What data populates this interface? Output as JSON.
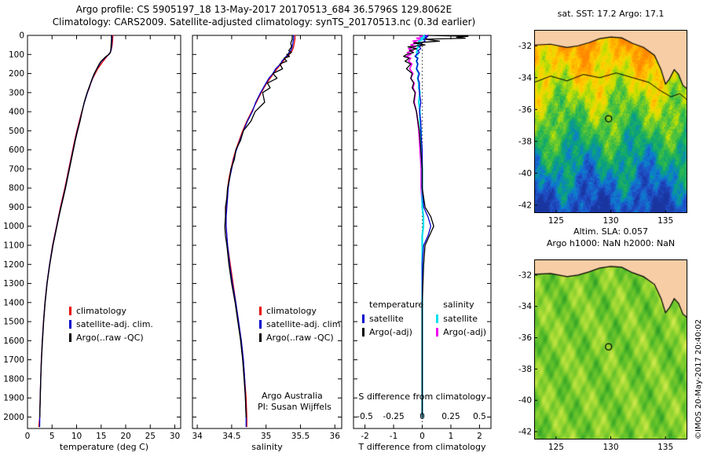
{
  "header": {
    "line1": "Argo profile: CS 5905197_18 13-May-2017 20170513_684 36.5796S 129.8062E",
    "line2": "Climatology: CARS2009. Satellite-adjusted climatology: synTS_20170513.nc (0.3d earlier)"
  },
  "credit": "©IMOS 20-May-2017 20:40:02",
  "chart_data": [
    {
      "id": "temperature-profile",
      "type": "line",
      "xlabel": "temperature (deg C)",
      "xlim": [
        0,
        31.2
      ],
      "xticks": [
        0,
        5,
        10,
        15,
        20,
        25,
        30
      ],
      "ylim": [
        0,
        2060
      ],
      "yticks": [
        0,
        100,
        200,
        300,
        400,
        500,
        600,
        700,
        800,
        900,
        1000,
        1100,
        1200,
        1300,
        1400,
        1500,
        1600,
        1700,
        1800,
        1900,
        2000
      ],
      "depths": [
        0,
        20,
        40,
        60,
        80,
        90,
        100,
        110,
        120,
        135,
        150,
        175,
        200,
        225,
        250,
        275,
        300,
        350,
        400,
        450,
        500,
        550,
        600,
        650,
        700,
        750,
        800,
        850,
        900,
        950,
        1000,
        1050,
        1100,
        1200,
        1300,
        1400,
        1500,
        1600,
        1700,
        1800,
        1900,
        2000,
        2050
      ],
      "series": [
        {
          "name": "climatology",
          "color": "#e60000",
          "values": [
            17.4,
            17.35,
            17.3,
            17.2,
            17.0,
            16.8,
            16.5,
            16.2,
            15.9,
            15.4,
            15.0,
            14.3,
            13.8,
            13.3,
            12.9,
            12.6,
            12.2,
            11.6,
            11.05,
            10.55,
            10.05,
            9.6,
            9.2,
            8.8,
            8.4,
            8.0,
            7.6,
            7.15,
            6.7,
            6.3,
            5.9,
            5.5,
            5.1,
            4.5,
            3.95,
            3.55,
            3.25,
            3.0,
            2.82,
            2.68,
            2.58,
            2.5,
            2.3
          ]
        },
        {
          "name": "satellite-adj. clim.",
          "color": "#0000cc",
          "values": [
            17.2,
            17.2,
            17.15,
            17.1,
            17.0,
            16.85,
            16.55,
            16.1,
            15.7,
            15.1,
            14.7,
            14.15,
            13.65,
            13.25,
            12.9,
            12.55,
            12.2,
            11.6,
            11.1,
            10.65,
            10.15,
            9.7,
            9.3,
            8.9,
            8.5,
            8.1,
            7.7,
            7.25,
            6.8,
            6.35,
            5.95,
            5.55,
            5.15,
            4.5,
            3.97,
            3.57,
            3.27,
            3.02,
            2.83,
            2.69,
            2.59,
            2.5,
            2.48
          ]
        },
        {
          "name": "Argo(..raw -QC)",
          "color": "#000000",
          "values": [
            17.1,
            17.1,
            17.05,
            17.0,
            16.95,
            16.9,
            16.6,
            16.0,
            15.6,
            15.0,
            14.6,
            14.1,
            13.6,
            13.2,
            12.85,
            12.5,
            12.15,
            11.55,
            11.1,
            10.7,
            10.2,
            9.75,
            9.35,
            8.95,
            8.55,
            8.15,
            7.75,
            7.3,
            6.85,
            6.4,
            6.0,
            5.6,
            5.2,
            4.55,
            4.0,
            3.6,
            3.3,
            3.05,
            2.85,
            2.7,
            2.6,
            2.5,
            null
          ]
        }
      ]
    },
    {
      "id": "salinity-profile",
      "type": "line",
      "xlabel": "salinity",
      "xlim": [
        33.93,
        36.1
      ],
      "xticks": [
        34,
        34.5,
        35,
        35.5,
        36
      ],
      "ylim": [
        0,
        2060
      ],
      "yticks": [
        0,
        100,
        200,
        300,
        400,
        500,
        600,
        700,
        800,
        900,
        1000,
        1100,
        1200,
        1300,
        1400,
        1500,
        1600,
        1700,
        1800,
        1900,
        2000
      ],
      "annotations": [
        "Argo Australia",
        "PI: Susan Wijffels"
      ],
      "depths": [
        0,
        20,
        40,
        60,
        80,
        90,
        100,
        110,
        120,
        135,
        150,
        175,
        200,
        225,
        250,
        275,
        300,
        350,
        400,
        450,
        500,
        550,
        600,
        650,
        700,
        750,
        800,
        850,
        900,
        950,
        1000,
        1050,
        1100,
        1200,
        1300,
        1400,
        1500,
        1600,
        1700,
        1800,
        1900,
        2000,
        2050
      ],
      "series": [
        {
          "name": "climatology",
          "color": "#e60000",
          "values": [
            35.42,
            35.42,
            35.41,
            35.4,
            35.38,
            35.36,
            35.34,
            35.31,
            35.28,
            35.25,
            35.22,
            35.16,
            35.11,
            35.06,
            35.01,
            34.97,
            34.93,
            34.86,
            34.79,
            34.72,
            34.66,
            34.61,
            34.56,
            34.52,
            34.49,
            34.46,
            34.44,
            34.43,
            34.42,
            34.42,
            34.42,
            34.43,
            34.44,
            34.48,
            34.52,
            34.56,
            34.6,
            34.64,
            34.67,
            34.69,
            34.71,
            34.72,
            34.72
          ]
        },
        {
          "name": "satellite-adj. clim.",
          "color": "#0000cc",
          "values": [
            35.4,
            35.4,
            35.39,
            35.38,
            35.36,
            35.33,
            35.33,
            35.29,
            35.27,
            35.23,
            35.21,
            35.14,
            35.1,
            35.04,
            35.0,
            34.96,
            34.92,
            34.85,
            34.8,
            34.73,
            34.67,
            34.62,
            34.57,
            34.53,
            34.5,
            34.47,
            34.45,
            34.44,
            34.43,
            34.42,
            34.42,
            34.43,
            34.44,
            34.47,
            34.51,
            34.56,
            34.6,
            34.64,
            34.67,
            34.69,
            34.7,
            34.71,
            34.71
          ]
        },
        {
          "name": "Argo(..raw -QC)",
          "color": "#000000",
          "values": [
            35.38,
            35.38,
            35.36,
            35.37,
            35.33,
            35.37,
            35.3,
            35.34,
            35.26,
            35.3,
            35.2,
            35.24,
            35.1,
            35.16,
            35.02,
            35.06,
            34.95,
            34.98,
            34.84,
            34.78,
            34.67,
            34.63,
            34.56,
            34.54,
            34.49,
            34.47,
            34.44,
            34.43,
            34.41,
            34.41,
            34.4,
            34.41,
            34.43,
            34.46,
            34.5,
            34.55,
            34.59,
            34.63,
            34.66,
            34.68,
            34.7,
            34.71,
            null
          ]
        }
      ]
    },
    {
      "id": "difference-profile",
      "type": "line",
      "xlabel": "T difference from climatology",
      "xlim": [
        -2.4,
        2.4
      ],
      "xticks": [
        -2,
        -1,
        0,
        1,
        2
      ],
      "ylim": [
        0,
        2060
      ],
      "yticks": [
        0,
        100,
        200,
        300,
        400,
        500,
        600,
        700,
        800,
        900,
        1000,
        1100,
        1200,
        1300,
        1400,
        1500,
        1600,
        1700,
        1800,
        1900,
        2000
      ],
      "legend_groups": [
        "temperature",
        "salinity"
      ],
      "s_axis": {
        "label": "S difference from climatology",
        "ticks": [
          -0.5,
          -0.25,
          0,
          0.25,
          0.5
        ],
        "scale": 4
      },
      "draw_order": [
        3,
        2,
        0,
        1
      ],
      "depths": [
        0,
        5,
        10,
        15,
        20,
        30,
        40,
        50,
        60,
        70,
        80,
        90,
        100,
        110,
        120,
        135,
        150,
        175,
        200,
        225,
        250,
        275,
        300,
        350,
        400,
        450,
        500,
        600,
        700,
        800,
        900,
        950,
        1000,
        1050,
        1100,
        1200,
        1400,
        1600,
        1800,
        2000
      ],
      "series": [
        {
          "name": "satellite",
          "group": "temperature",
          "color": "#0000cc",
          "values": [
            0.1,
            0.2,
            0.1,
            0.15,
            0.05,
            0.1,
            -0.05,
            0.0,
            -0.1,
            -0.05,
            -0.15,
            -0.1,
            -0.2,
            -0.25,
            -0.15,
            -0.2,
            -0.15,
            -0.2,
            -0.1,
            -0.15,
            -0.1,
            -0.1,
            -0.1,
            -0.05,
            -0.1,
            -0.05,
            -0.05,
            0.0,
            0.0,
            0.0,
            0.05,
            0.2,
            0.3,
            0.2,
            0.05,
            0.0,
            0.0,
            0.0,
            0.0,
            0.0
          ]
        },
        {
          "name": "Argo(-adj)",
          "group": "temperature",
          "color": "#000000",
          "values": [
            0.2,
            1.6,
            1.2,
            1.5,
            0.1,
            0.6,
            -0.3,
            0.1,
            -0.5,
            -0.2,
            -0.45,
            -0.3,
            -0.55,
            -0.65,
            -0.45,
            -0.6,
            -0.4,
            -0.55,
            -0.35,
            -0.4,
            -0.3,
            -0.35,
            -0.25,
            -0.3,
            -0.2,
            -0.15,
            -0.1,
            -0.05,
            0.0,
            0.0,
            0.1,
            0.3,
            0.4,
            0.25,
            0.1,
            0.05,
            0.0,
            0.0,
            0.0,
            0.0
          ]
        },
        {
          "name": "satellite",
          "group": "salinity",
          "color": "#00e0f0",
          "scale": 4,
          "width": 2.2,
          "values": [
            0.02,
            0.01,
            0.02,
            -0.01,
            0.01,
            -0.03,
            -0.02,
            -0.04,
            -0.03,
            -0.05,
            -0.04,
            -0.05,
            -0.04,
            -0.06,
            -0.04,
            -0.05,
            -0.04,
            -0.05,
            -0.03,
            -0.04,
            -0.03,
            -0.03,
            -0.02,
            -0.03,
            -0.02,
            -0.02,
            -0.01,
            -0.01,
            0.0,
            0.0,
            0.0,
            0.01,
            0.01,
            0.0,
            0.0,
            0.0,
            0.0,
            0.0,
            0.0,
            0.0
          ]
        },
        {
          "name": "Argo(-adj)",
          "group": "salinity",
          "color": "#f000f0",
          "scale": 4,
          "width": 1.6,
          "values": [
            0.05,
            -0.02,
            0.04,
            -0.05,
            0.02,
            -0.08,
            -0.04,
            -0.1,
            -0.06,
            -0.12,
            -0.08,
            -0.13,
            -0.1,
            -0.14,
            -0.1,
            -0.12,
            -0.09,
            -0.11,
            -0.08,
            -0.1,
            -0.07,
            -0.08,
            -0.06,
            -0.07,
            -0.05,
            -0.04,
            -0.03,
            -0.02,
            -0.01,
            -0.01,
            0.0,
            0.01,
            0.01,
            0.0,
            0.0,
            0.0,
            0.0,
            0.0,
            0.0,
            0.0
          ]
        }
      ]
    }
  ],
  "maps": [
    {
      "id": "sst",
      "title": "sat. SST: 17.2 Argo: 17.1",
      "xlim": [
        123,
        137
      ],
      "xticks": [
        125,
        130,
        135
      ],
      "ylim": [
        -31,
        -42.5
      ],
      "yticks": [
        -32,
        -34,
        -36,
        -38,
        -40,
        -42
      ],
      "marker": {
        "lon": 129.8,
        "lat": -36.58
      },
      "land_color": "#f7cda6",
      "palette": [
        "#ff8800",
        "#ffaa00",
        "#ffd400",
        "#c8e000",
        "#6ecb2d",
        "#2db84e",
        "#0ba37a",
        "#0c7fd0",
        "#2050c8",
        "#1a35a0"
      ],
      "coast": [
        [
          123,
          -31.95
        ],
        [
          124.5,
          -31.9
        ],
        [
          126,
          -32.1
        ],
        [
          127,
          -32.0
        ],
        [
          128,
          -31.8
        ],
        [
          129,
          -31.55
        ],
        [
          130,
          -31.45
        ],
        [
          131,
          -31.5
        ],
        [
          132,
          -31.85
        ],
        [
          133,
          -32.1
        ],
        [
          134,
          -32.6
        ],
        [
          134.6,
          -33.5
        ],
        [
          135.0,
          -34.4
        ],
        [
          135.35,
          -34.1
        ],
        [
          135.8,
          -33.5
        ],
        [
          136.2,
          -33.8
        ],
        [
          136.6,
          -34.5
        ],
        [
          137,
          -34.7
        ]
      ],
      "front": [
        [
          123,
          -34.3
        ],
        [
          124.5,
          -33.9
        ],
        [
          126,
          -34.2
        ],
        [
          127.5,
          -33.8
        ],
        [
          129,
          -34.0
        ],
        [
          130.5,
          -33.7
        ],
        [
          132,
          -34.0
        ],
        [
          133.5,
          -34.3
        ],
        [
          134.5,
          -34.8
        ],
        [
          135.5,
          -35.2
        ],
        [
          136.3,
          -35.0
        ],
        [
          137,
          -35.4
        ]
      ]
    },
    {
      "id": "sla",
      "title1": "Altim. SLA: 0.057",
      "title2": "Argo h1000: NaN h2000: NaN",
      "xlim": [
        123,
        137
      ],
      "xticks": [
        125,
        130,
        135
      ],
      "ylim": [
        -31,
        -42.5
      ],
      "yticks": [
        -32,
        -34,
        -36,
        -38,
        -40,
        -42
      ],
      "marker": {
        "lon": 129.8,
        "lat": -36.58
      },
      "land_color": "#f7cda6",
      "palette": [
        "#2f9e28",
        "#55bb2a",
        "#7ecc2e",
        "#a8dc36",
        "#cfe84e"
      ],
      "coast": [
        [
          123,
          -31.95
        ],
        [
          124.5,
          -31.9
        ],
        [
          126,
          -32.1
        ],
        [
          127,
          -32.0
        ],
        [
          128,
          -31.8
        ],
        [
          129,
          -31.55
        ],
        [
          130,
          -31.45
        ],
        [
          131,
          -31.5
        ],
        [
          132,
          -31.85
        ],
        [
          133,
          -32.1
        ],
        [
          134,
          -32.6
        ],
        [
          134.6,
          -33.5
        ],
        [
          135.0,
          -34.4
        ],
        [
          135.35,
          -34.1
        ],
        [
          135.8,
          -33.5
        ],
        [
          136.2,
          -33.8
        ],
        [
          136.6,
          -34.5
        ],
        [
          137,
          -34.7
        ]
      ]
    }
  ]
}
